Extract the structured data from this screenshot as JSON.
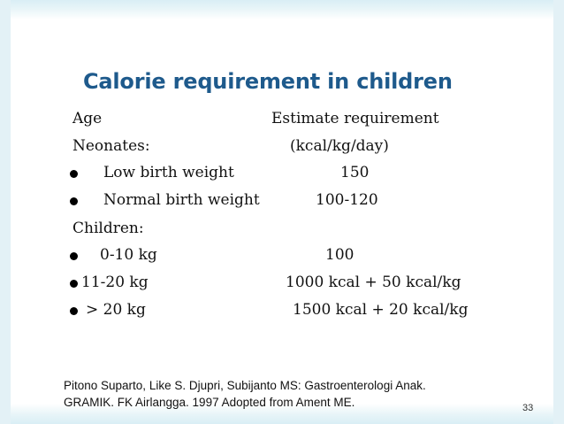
{
  "title": "Calorie requirement in children",
  "header": {
    "left": "Age",
    "right": "Estimate requirement"
  },
  "neonates": {
    "label": "Neonates:",
    "unit": "(kcal/kg/day)",
    "items": [
      {
        "label": "Low birth weight",
        "value": "150"
      },
      {
        "label": "Normal birth weight",
        "value": "100-120"
      }
    ]
  },
  "children": {
    "label": "Children:",
    "items": [
      {
        "label": "0-10 kg",
        "value": "100"
      },
      {
        "label": "11-20 kg",
        "value": "1000 kcal + 50 kcal/kg"
      },
      {
        "label": "> 20 kg",
        "value": "1500 kcal + 20 kcal/kg"
      }
    ]
  },
  "reference": {
    "line1": "Pitono Suparto, Like S. Djupri, Subijanto MS: Gastroenterologi Anak.",
    "line2": "GRAMIK. FK Airlangga. 1997  Adopted from Ament ME."
  },
  "page_number": "33",
  "colors": {
    "title": "#1e5a8c",
    "text": "#111111"
  }
}
